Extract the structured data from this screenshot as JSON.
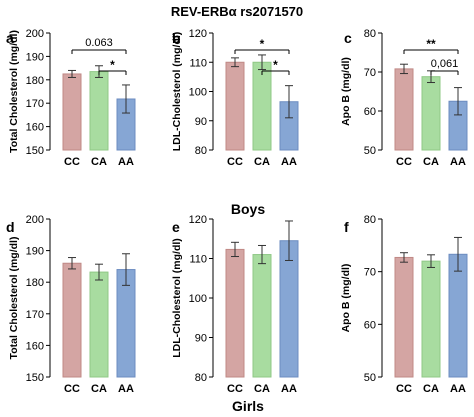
{
  "figure_title": "REV-ERBα  rs2071570",
  "group_labels": [
    "Boys",
    "Girls"
  ],
  "bar_colors": {
    "CC": {
      "fill": "#d4a5a3",
      "stroke": "#c08986"
    },
    "CA": {
      "fill": "#a8dca0",
      "stroke": "#8fc886"
    },
    "AA": {
      "fill": "#86a6d4",
      "stroke": "#6c8cc0"
    }
  },
  "chart_data": [
    {
      "panel": "a",
      "type": "bar",
      "group": "Boys",
      "ylabel": "Total Cholesterol (mg/dl)",
      "categories": [
        "CC",
        "CA",
        "AA"
      ],
      "values": [
        182.5,
        183.5,
        171.8
      ],
      "errors": [
        1.5,
        2.5,
        6.0
      ],
      "ylim": [
        150,
        200
      ],
      "yticks": [
        150,
        160,
        170,
        180,
        190,
        200
      ],
      "annotations": [
        {
          "from": 0,
          "to": 2,
          "label": "0.063"
        },
        {
          "from": 1,
          "to": 2,
          "label": "*"
        }
      ]
    },
    {
      "panel": "b",
      "type": "bar",
      "group": "Boys",
      "ylabel": "LDL-Cholesterol (mg/dl)",
      "categories": [
        "CC",
        "CA",
        "AA"
      ],
      "values": [
        110.0,
        110.0,
        96.5
      ],
      "errors": [
        1.5,
        2.5,
        5.5
      ],
      "ylim": [
        80,
        120
      ],
      "yticks": [
        80,
        90,
        100,
        110,
        120
      ],
      "annotations": [
        {
          "from": 0,
          "to": 2,
          "label": "*"
        },
        {
          "from": 1,
          "to": 2,
          "label": "*"
        }
      ]
    },
    {
      "panel": "c",
      "type": "bar",
      "group": "Boys",
      "ylabel": "Apo B (mg/dl)",
      "categories": [
        "CC",
        "CA",
        "AA"
      ],
      "values": [
        70.8,
        68.8,
        62.5
      ],
      "errors": [
        1.2,
        1.5,
        3.5
      ],
      "ylim": [
        50,
        80
      ],
      "yticks": [
        50,
        60,
        70,
        80
      ],
      "annotations": [
        {
          "from": 0,
          "to": 2,
          "label": "**"
        },
        {
          "from": 1,
          "to": 2,
          "label": "0,061"
        }
      ]
    },
    {
      "panel": "d",
      "type": "bar",
      "group": "Girls",
      "ylabel": "Total Cholesterol (mg/dl)",
      "categories": [
        "CC",
        "CA",
        "AA"
      ],
      "values": [
        186.0,
        183.2,
        184.0
      ],
      "errors": [
        1.8,
        2.5,
        5.0
      ],
      "ylim": [
        150,
        200
      ],
      "yticks": [
        150,
        160,
        170,
        180,
        190,
        200
      ],
      "annotations": []
    },
    {
      "panel": "e",
      "type": "bar",
      "group": "Girls",
      "ylabel": "LDL-Cholesterol (mg/dl)",
      "categories": [
        "CC",
        "CA",
        "AA"
      ],
      "values": [
        112.3,
        111.0,
        114.5
      ],
      "errors": [
        1.8,
        2.3,
        5.0
      ],
      "ylim": [
        80,
        120
      ],
      "yticks": [
        80,
        90,
        100,
        110,
        120
      ],
      "annotations": []
    },
    {
      "panel": "f",
      "type": "bar",
      "group": "Girls",
      "ylabel": "Apo B (mg/dl)",
      "categories": [
        "CC",
        "CA",
        "AA"
      ],
      "values": [
        72.7,
        72.0,
        73.3
      ],
      "errors": [
        0.9,
        1.2,
        3.2
      ],
      "ylim": [
        50,
        80
      ],
      "yticks": [
        50,
        60,
        70,
        80
      ],
      "annotations": []
    }
  ]
}
